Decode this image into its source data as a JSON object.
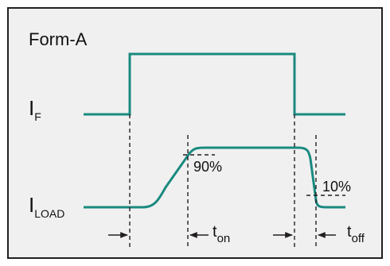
{
  "title": "Form-A",
  "labels": {
    "if_main": "I",
    "if_sub": "F",
    "iload_main": "I",
    "iload_sub": "LOAD",
    "pct_90": "90%",
    "pct_10": "10%",
    "ton_main": "t",
    "ton_sub": "on",
    "toff_main": "t",
    "toff_sub": "off"
  },
  "colors": {
    "background": "#f0f0f0",
    "border": "#231f20",
    "waveform": "#1a8a80",
    "guide": "#231f20"
  }
}
